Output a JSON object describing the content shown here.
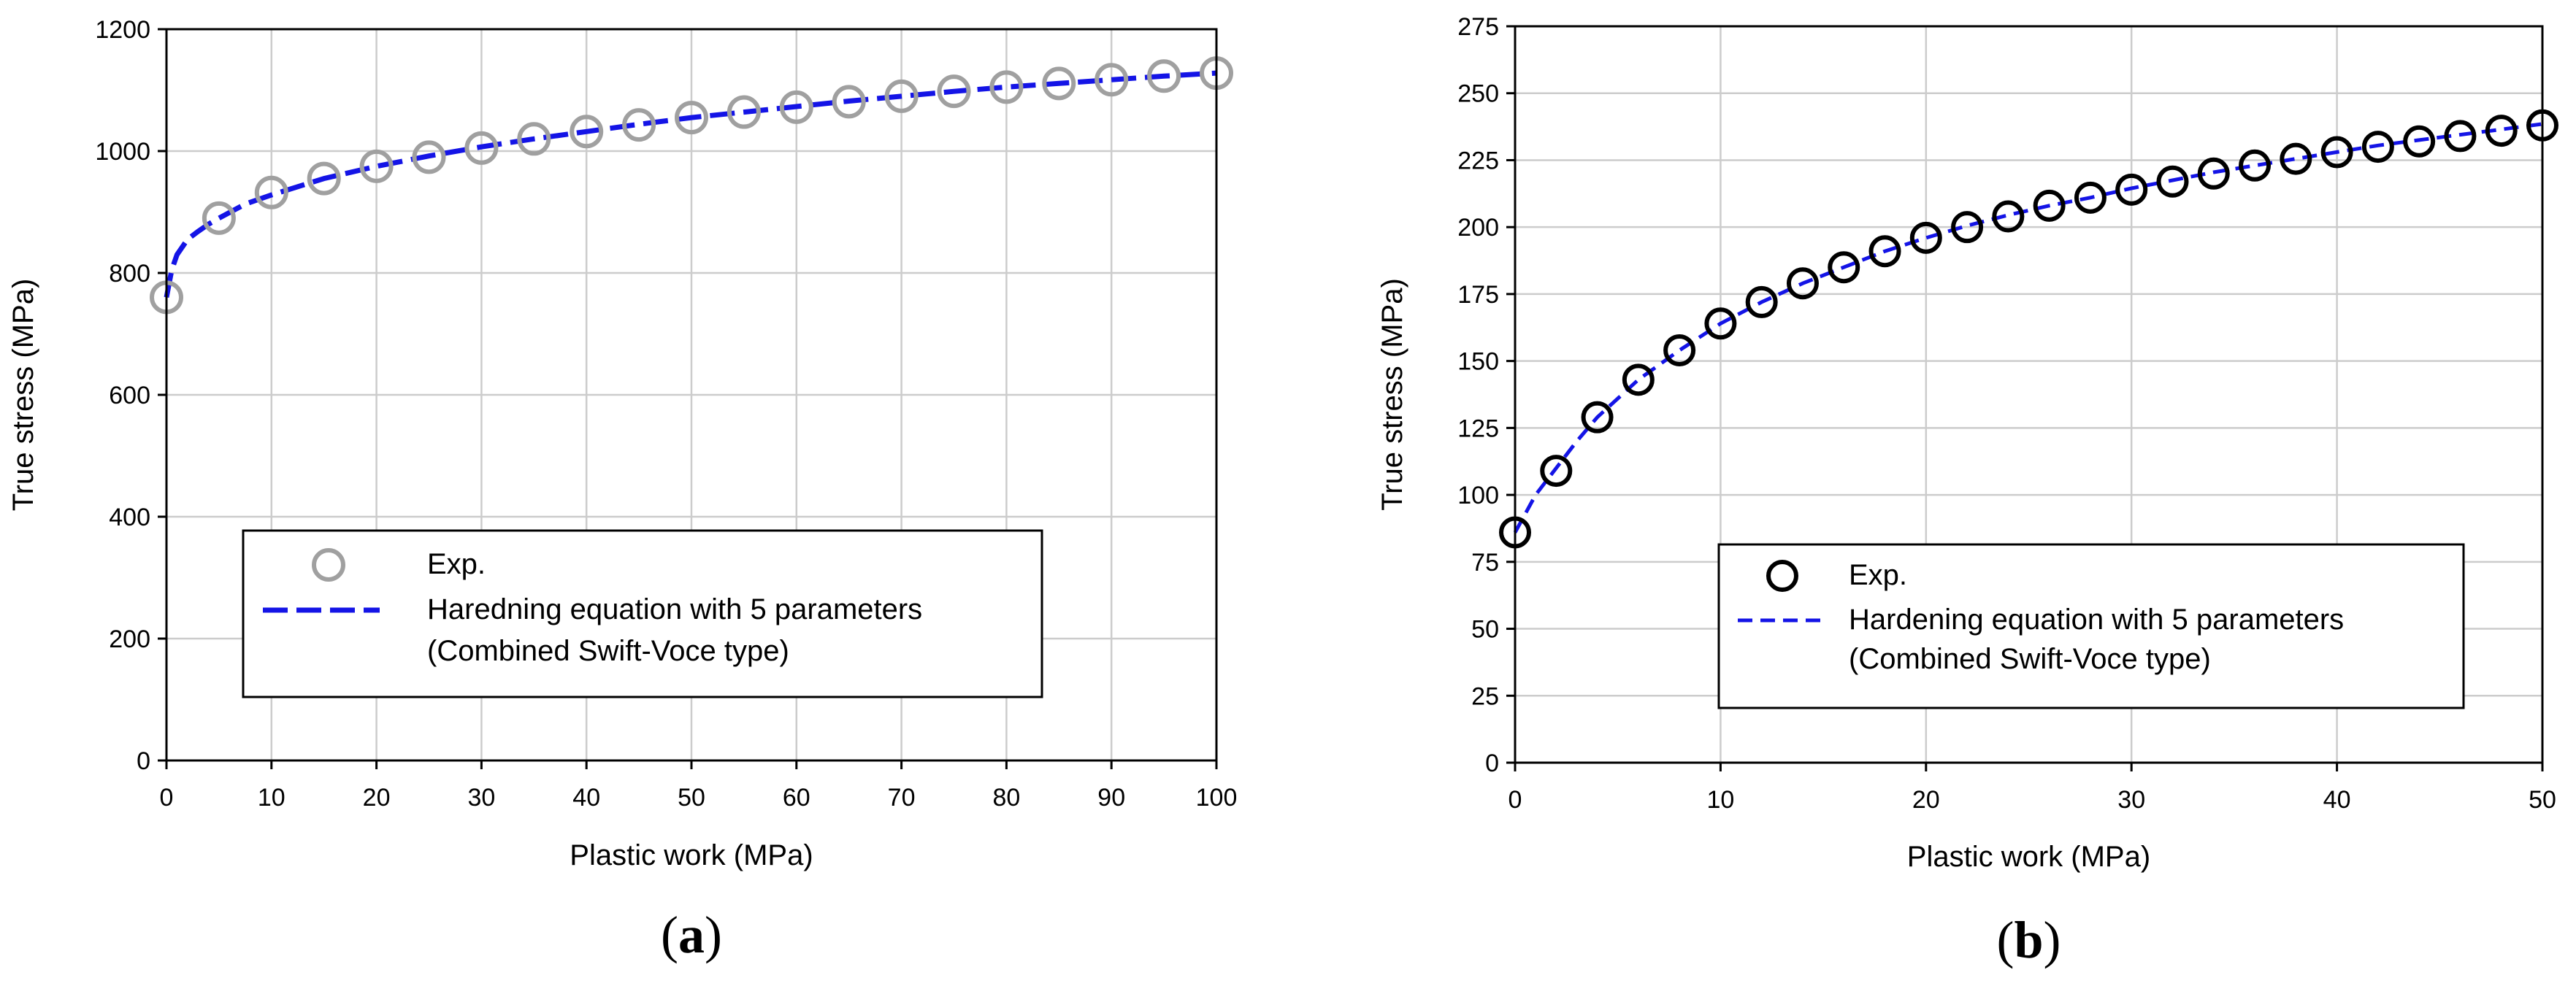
{
  "chart_data": [
    {
      "type": "scatter",
      "panel_label": "a",
      "title": "",
      "xlabel": "Plastic work (MPa)",
      "ylabel": "True stress (MPa)",
      "xlim": [
        0,
        100
      ],
      "ylim": [
        0,
        1200
      ],
      "xticks": [
        0,
        10,
        20,
        30,
        40,
        50,
        60,
        70,
        80,
        90,
        100
      ],
      "yticks": [
        0,
        200,
        400,
        600,
        800,
        1000,
        1200
      ],
      "grid": true,
      "legend_position": "lower-center",
      "series": [
        {
          "name": "Exp.",
          "kind": "markers",
          "marker": "open-circle",
          "color": "#a0a0a0",
          "x": [
            0,
            5,
            10,
            15,
            20,
            25,
            30,
            35,
            40,
            45,
            50,
            55,
            60,
            65,
            70,
            75,
            80,
            85,
            90,
            95,
            100
          ],
          "y": [
            760,
            890,
            932,
            955,
            975,
            990,
            1005,
            1020,
            1032,
            1043,
            1055,
            1064,
            1072,
            1081,
            1090,
            1098,
            1105,
            1111,
            1117,
            1123,
            1128
          ]
        },
        {
          "name": "Haredning equation with 5 parameters\n(Combined Swift-Voce type)",
          "kind": "line",
          "dash": "long-dash",
          "color": "#1414e6",
          "x": [
            0,
            0.5,
            1,
            2,
            3,
            4,
            5,
            7.5,
            10,
            15,
            20,
            25,
            30,
            35,
            40,
            45,
            50,
            55,
            60,
            65,
            70,
            75,
            80,
            85,
            90,
            95,
            100
          ],
          "y": [
            760,
            805,
            830,
            855,
            868,
            880,
            890,
            913,
            928,
            955,
            975,
            992,
            1007,
            1020,
            1032,
            1044,
            1055,
            1064,
            1073,
            1082,
            1090,
            1098,
            1105,
            1111,
            1117,
            1123,
            1128
          ]
        }
      ]
    },
    {
      "type": "scatter",
      "panel_label": "b",
      "title": "",
      "xlabel": "Plastic work (MPa)",
      "ylabel": "True stress (MPa)",
      "xlim": [
        0,
        50
      ],
      "ylim": [
        0,
        275
      ],
      "xticks": [
        0,
        10,
        20,
        30,
        40,
        50
      ],
      "yticks": [
        0,
        25,
        50,
        75,
        100,
        125,
        150,
        175,
        200,
        225,
        250,
        275
      ],
      "grid": true,
      "legend_position": "lower-center",
      "series": [
        {
          "name": "Exp.",
          "kind": "markers",
          "marker": "open-circle",
          "color": "#000000",
          "x": [
            0,
            2,
            4,
            6,
            8,
            10,
            12,
            14,
            16,
            18,
            20,
            22,
            24,
            26,
            28,
            30,
            32,
            34,
            36,
            38,
            40,
            42,
            44,
            46,
            48,
            50
          ],
          "y": [
            86,
            109,
            129,
            143,
            154,
            164,
            172,
            179,
            185,
            191,
            196,
            200,
            204,
            208,
            211,
            214,
            217,
            220,
            223,
            225.5,
            228,
            230,
            232,
            234,
            236,
            238
          ]
        },
        {
          "name": "Hardening equation with 5 parameters\n(Combined Swift-Voce type)",
          "kind": "line",
          "dash": "dash",
          "color": "#1414e6",
          "x": [
            0,
            0.5,
            1,
            2,
            3,
            4,
            6,
            8,
            10,
            12,
            14,
            16,
            18,
            20,
            22,
            24,
            26,
            28,
            30,
            32,
            34,
            36,
            38,
            40,
            42,
            44,
            46,
            48,
            50
          ],
          "y": [
            86,
            93,
            100,
            110,
            120,
            129,
            143,
            154,
            164,
            172,
            179,
            185,
            191,
            196,
            200.5,
            204.5,
            208,
            211,
            214.5,
            217.5,
            220.5,
            223,
            225.5,
            228,
            230.5,
            232.5,
            234.5,
            236.5,
            238.5
          ]
        }
      ]
    }
  ]
}
